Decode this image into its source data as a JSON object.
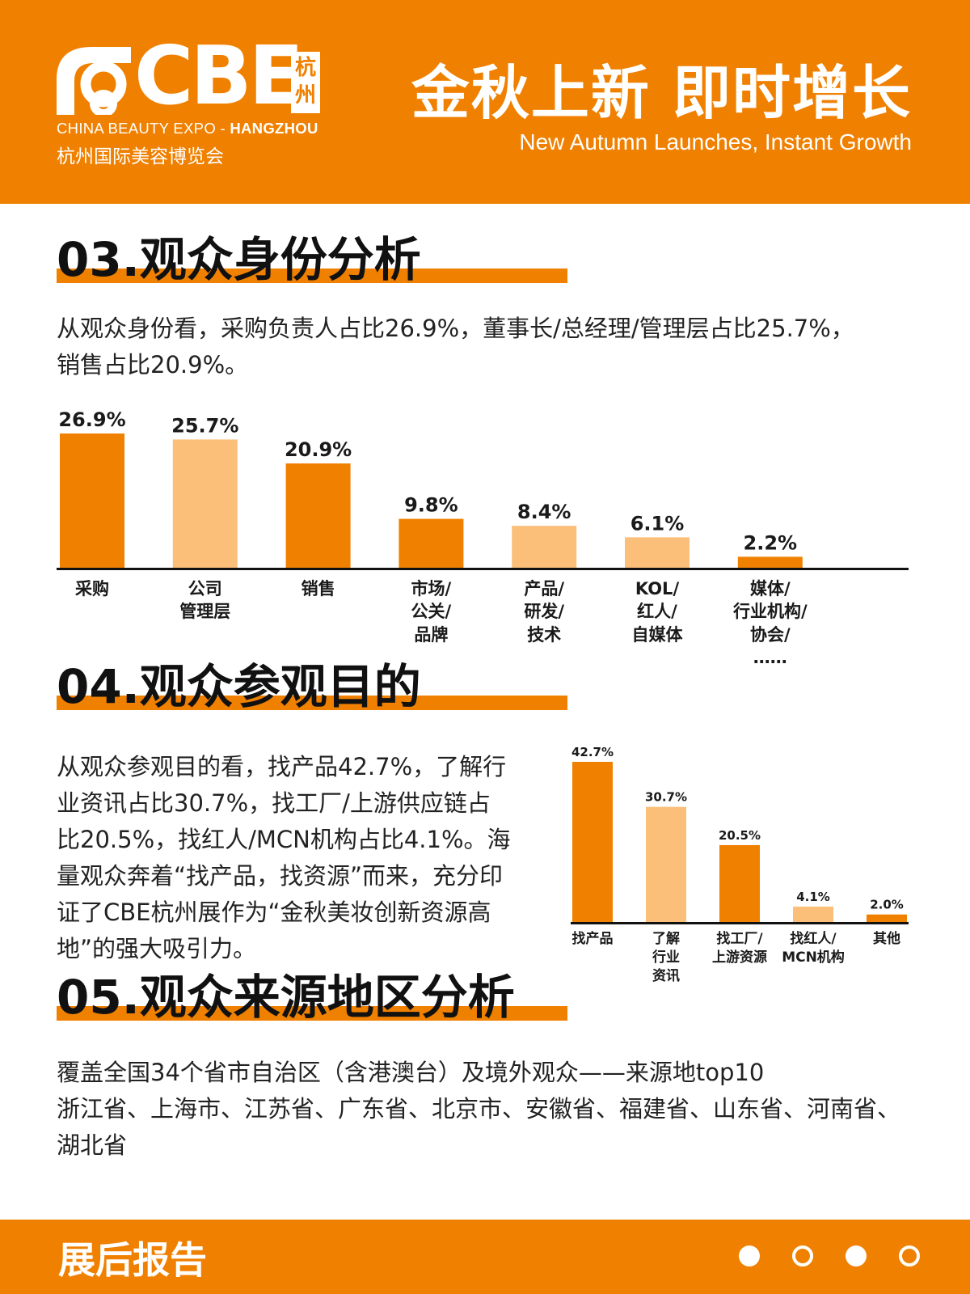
{
  "header": {
    "logo_text": "CBE",
    "logo_city": [
      "杭",
      "州"
    ],
    "logo_en_prefix": "CHINA BEAUTY EXPO - ",
    "logo_en_city": "HANGZHOU",
    "logo_cn": "杭州国际美容博览会",
    "slogan_cn": "金秋上新 即时增长",
    "slogan_en": "New Autumn Launches, Instant Growth"
  },
  "section3": {
    "title": "03.观众身份分析",
    "text_line1": "从观众身份看，采购负责人占比26.9%，董事长/总经理/管理层占比25.7%，",
    "text_line2": "销售占比20.9%。"
  },
  "section4": {
    "title": "04.观众参观目的",
    "text_lines": [
      "从观众参观目的看，找产品42.7%，了解行",
      "业资讯占比30.7%，找工厂/上游供应链占",
      "比20.5%，找红人/MCN机构占比4.1%。海",
      "量观众奔着“找产品，找资源”而来，充分印",
      "证了CBE杭州展作为“金秋美妆创新资源高",
      "地”的强大吸引力。"
    ]
  },
  "section5": {
    "title": "05.观众来源地区分析",
    "text_lines": [
      "覆盖全国34个省市自治区（含港澳台）及境外观众——来源地top10",
      "浙江省、上海市、江苏省、广东省、北京市、安徽省、福建省、山东省、河南省、",
      "湖北省"
    ]
  },
  "footer": {
    "title": "展后报告",
    "dots": [
      "filled",
      "ring",
      "filled",
      "ring"
    ]
  },
  "colors": {
    "orange": "#f08000",
    "light_orange": "#fbbf7a"
  },
  "chart_data": [
    {
      "type": "bar",
      "categories": [
        [
          "采购"
        ],
        [
          "公司",
          "管理层"
        ],
        [
          "销售"
        ],
        [
          "市场/",
          "公关/",
          "品牌"
        ],
        [
          "产品/",
          "研发/",
          "技术"
        ],
        [
          "KOL/",
          "红人/",
          "自媒体"
        ],
        [
          "媒体/",
          "行业机构/",
          "协会/",
          "……"
        ]
      ],
      "values": [
        26.9,
        25.7,
        20.9,
        9.8,
        8.4,
        6.1,
        2.2
      ],
      "value_labels": [
        "26.9%",
        "25.7%",
        "20.9%",
        "9.8%",
        "8.4%",
        "6.1%",
        "2.2%"
      ],
      "bar_colors": [
        "#f08000",
        "#fbbf7a",
        "#f08000",
        "#f08000",
        "#fbbf7a",
        "#fbbf7a",
        "#f08000"
      ],
      "ylim": [
        0,
        26.9
      ],
      "grid": false
    },
    {
      "type": "bar",
      "categories": [
        [
          "找产品"
        ],
        [
          "了解",
          "行业",
          "资讯"
        ],
        [
          "找工厂/",
          "上游资源"
        ],
        [
          "找红人/",
          "MCN机构"
        ],
        [
          "其他"
        ]
      ],
      "values": [
        42.7,
        30.7,
        20.5,
        4.1,
        2.0
      ],
      "value_labels": [
        "42.7%",
        "30.7%",
        "20.5%",
        "4.1%",
        "2.0%"
      ],
      "bar_colors": [
        "#f08000",
        "#fbbf7a",
        "#f08000",
        "#fbbf7a",
        "#f08000"
      ],
      "ylim": [
        0,
        42.7
      ],
      "grid": false
    }
  ]
}
